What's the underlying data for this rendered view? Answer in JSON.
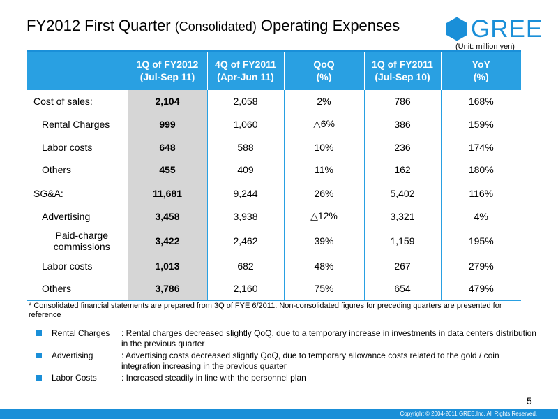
{
  "title": {
    "main": "FY2012 First Quarter ",
    "paren": "(Consolidated)",
    "rest": " Operating Expenses"
  },
  "logo": {
    "text": "GREE"
  },
  "unit": "(Unit: million yen)",
  "table": {
    "headers": [
      [
        "",
        ""
      ],
      [
        "1Q of FY2012",
        "(Jul-Sep 11)"
      ],
      [
        "4Q of FY2011",
        "(Apr-Jun 11)"
      ],
      [
        "QoQ",
        "(%)"
      ],
      [
        "1Q of FY2011",
        "(Jul-Sep 10)"
      ],
      [
        "YoY",
        "(%)"
      ]
    ],
    "rows": [
      [
        "Cost of sales:",
        "2,104",
        "2,058",
        "2%",
        "786",
        "168%"
      ],
      [
        "Rental Charges",
        "999",
        "1,060",
        "△6%",
        "386",
        "159%"
      ],
      [
        "Labor costs",
        "648",
        "588",
        "10%",
        "236",
        "174%"
      ],
      [
        "Others",
        "455",
        "409",
        "11%",
        "162",
        "180%"
      ],
      [
        "SG&A:",
        "11,681",
        "9,244",
        "26%",
        "5,402",
        "116%"
      ],
      [
        "Advertising",
        "3,458",
        "3,938",
        "△12%",
        "3,321",
        "4%"
      ],
      [
        "Paid-charge commissions",
        "3,422",
        "2,462",
        "39%",
        "1,159",
        "195%"
      ],
      [
        "Labor costs",
        "1,013",
        "682",
        "48%",
        "267",
        "279%"
      ],
      [
        "Others",
        "3,786",
        "2,160",
        "75%",
        "654",
        "479%"
      ]
    ]
  },
  "footnote": "* Consolidated financial statements are prepared from 3Q of FYE 6/2011. Non-consolidated figures for preceding quarters are presented for reference",
  "bullets": [
    {
      "label": "Rental Charges",
      "text": ": Rental charges decreased slightly QoQ, due to a temporary increase in investments in data centers distribution in the previous quarter"
    },
    {
      "label": "Advertising",
      "text": ": Advertising costs decreased slightly QoQ, due to temporary allowance costs related to the gold / coin integration increasing in the previous quarter"
    },
    {
      "label": "Labor Costs",
      "text": ": Increased steadily in line with the personnel plan"
    }
  ],
  "page_number": "5",
  "copyright": "Copyright © 2004-2011 GREE,Inc. All Rights Reserved.",
  "colors": {
    "accent": "#1a8fd8",
    "header_bg": "#29a0e2",
    "highlight": "#d6d6d6"
  }
}
